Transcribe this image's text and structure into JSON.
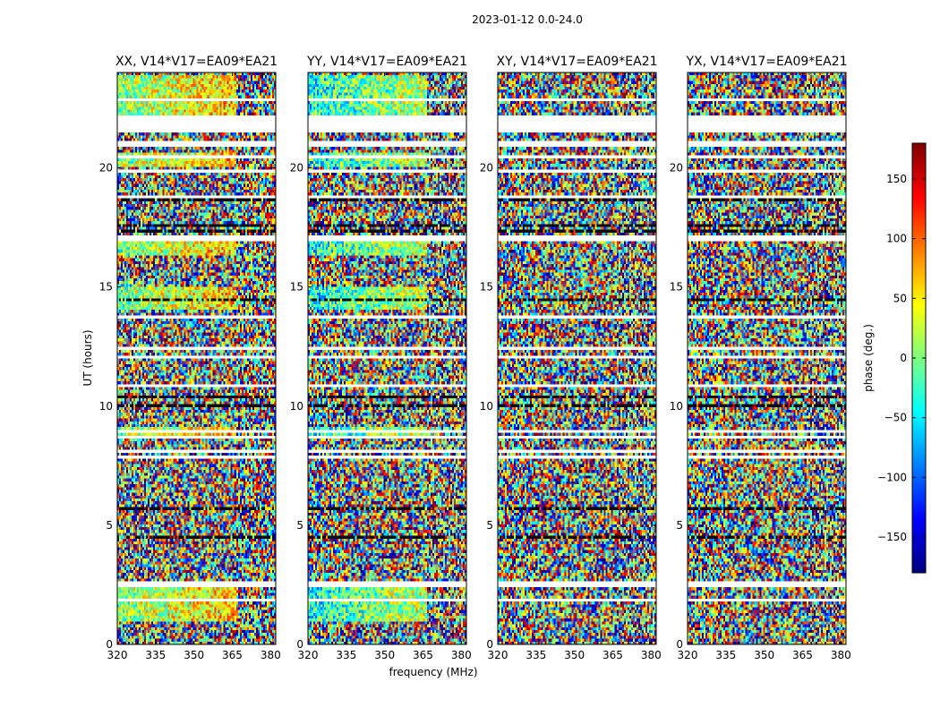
{
  "figure": {
    "title": "2023-01-12 0.0-24.0",
    "xlabel": "frequency (MHz)",
    "ylabel": "UT (hours)"
  },
  "colorbar": {
    "label": "phase (deg.)",
    "range": [
      -180,
      180
    ],
    "ticks": [
      150,
      100,
      50,
      0,
      -50,
      -100,
      -150
    ],
    "tick_labels": [
      "150",
      "100",
      "50",
      "0",
      "−50",
      "−100",
      "−150"
    ],
    "colormap": "jet",
    "colors": [
      "#00007f",
      "#0000ff",
      "#007fff",
      "#00ffff",
      "#7fff7f",
      "#ffff00",
      "#ff7f00",
      "#ff0000",
      "#7f0000"
    ]
  },
  "chart_data": {
    "type": "heatmap",
    "title": "2023-01-12 0.0-24.0",
    "xlabel": "frequency (MHz)",
    "ylabel": "UT (hours)",
    "xlim": [
      320,
      382
    ],
    "ylim": [
      0,
      24
    ],
    "x_ticks": [
      320,
      335,
      350,
      365,
      380
    ],
    "y_ticks": [
      0,
      5,
      10,
      15,
      20
    ],
    "value_label": "phase (deg.)",
    "value_range": [
      -180,
      180
    ],
    "gap_bands_hours": [
      [
        21.45,
        22.15
      ],
      [
        13.7,
        13.85
      ],
      [
        2.45,
        2.6
      ]
    ],
    "panels": [
      {
        "title": "XX, V14*V17=EA09*EA21",
        "coherent_phase_deg": 0
      },
      {
        "title": "YY, V14*V17=EA09*EA21",
        "coherent_phase_deg": -40
      },
      {
        "title": "XY, V14*V17=EA09*EA21",
        "coherent_phase_deg": null
      },
      {
        "title": "YX, V14*V17=EA09*EA21",
        "coherent_phase_deg": null
      }
    ]
  }
}
